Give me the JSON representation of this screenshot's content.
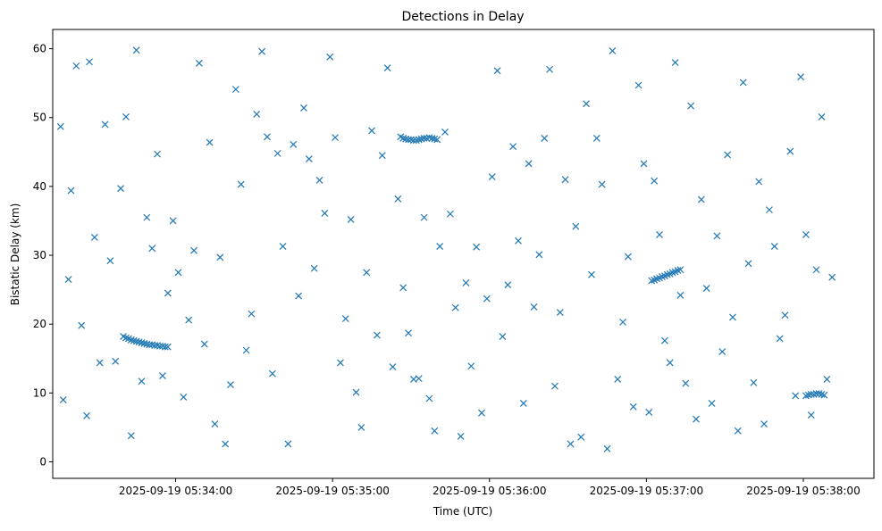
{
  "chart_data": {
    "type": "scatter",
    "title": "Detections in Delay",
    "xlabel": "Time (UTC)",
    "ylabel": "Bistatic Delay (km)",
    "xlim": [
      "2025-09-19 05:33:13",
      "2025-09-19 05:38:27"
    ],
    "ylim": [
      -2.4,
      62.8
    ],
    "x_ticks": [
      "2025-09-19 05:34:00",
      "2025-09-19 05:35:00",
      "2025-09-19 05:36:00",
      "2025-09-19 05:37:00",
      "2025-09-19 05:38:00"
    ],
    "y_ticks": [
      0,
      10,
      20,
      30,
      40,
      50,
      60
    ],
    "marker": "x",
    "color": "#1f77b4",
    "grid": false,
    "series": [
      {
        "x": [
          "05:33:16",
          "05:33:17",
          "05:33:19",
          "05:33:20",
          "05:33:22",
          "05:33:24",
          "05:33:26",
          "05:33:27",
          "05:33:29",
          "05:33:31",
          "05:33:33",
          "05:33:35",
          "05:33:37",
          "05:33:39",
          "05:33:41",
          "05:33:43",
          "05:33:45",
          "05:33:47",
          "05:33:49",
          "05:33:51",
          "05:33:53",
          "05:33:55",
          "05:33:57",
          "05:33:59",
          "05:34:01",
          "05:34:03",
          "05:34:05",
          "05:34:07",
          "05:34:09",
          "05:34:11",
          "05:34:13",
          "05:34:15",
          "05:34:17",
          "05:34:19",
          "05:34:21",
          "05:34:23",
          "05:34:25",
          "05:34:27",
          "05:34:29",
          "05:34:31",
          "05:33:40",
          "05:33:41",
          "05:33:42",
          "05:33:43",
          "05:33:44",
          "05:33:45",
          "05:33:46",
          "05:33:47",
          "05:33:48",
          "05:33:49",
          "05:33:50",
          "05:33:51",
          "05:33:52",
          "05:33:53",
          "05:33:54",
          "05:33:55",
          "05:33:56",
          "05:33:57",
          "05:34:33",
          "05:34:35",
          "05:34:37",
          "05:34:39",
          "05:34:41",
          "05:34:43",
          "05:34:45",
          "05:34:47",
          "05:34:49",
          "05:34:51",
          "05:34:53",
          "05:34:55",
          "05:34:57",
          "05:34:59",
          "05:35:01",
          "05:35:03",
          "05:35:05",
          "05:35:07",
          "05:35:09",
          "05:35:11",
          "05:35:13",
          "05:35:15",
          "05:35:17",
          "05:35:19",
          "05:35:21",
          "05:35:23",
          "05:35:25",
          "05:35:27",
          "05:35:29",
          "05:35:31",
          "05:35:33",
          "05:35:35",
          "05:35:37",
          "05:35:39",
          "05:35:41",
          "05:35:43",
          "05:35:45",
          "05:35:47",
          "05:35:49",
          "05:35:51",
          "05:35:53",
          "05:35:55",
          "05:35:57",
          "05:35:59",
          "05:36:01",
          "05:36:03",
          "05:36:05",
          "05:36:07",
          "05:36:09",
          "05:36:11",
          "05:36:13",
          "05:36:15",
          "05:36:17",
          "05:36:19",
          "05:36:21",
          "05:36:23",
          "05:36:25",
          "05:36:27",
          "05:36:29",
          "05:36:31",
          "05:35:26",
          "05:35:27",
          "05:35:28",
          "05:35:29",
          "05:35:30",
          "05:35:31",
          "05:35:32",
          "05:35:33",
          "05:35:34",
          "05:35:35",
          "05:35:36",
          "05:35:37",
          "05:35:38",
          "05:35:39",
          "05:35:40",
          "05:36:33",
          "05:36:35",
          "05:36:37",
          "05:36:39",
          "05:36:41",
          "05:36:43",
          "05:36:45",
          "05:36:47",
          "05:36:49",
          "05:36:51",
          "05:36:53",
          "05:36:55",
          "05:36:57",
          "05:36:59",
          "05:37:01",
          "05:37:03",
          "05:37:05",
          "05:37:07",
          "05:37:09",
          "05:37:11",
          "05:37:13",
          "05:37:15",
          "05:37:17",
          "05:37:19",
          "05:37:21",
          "05:37:23",
          "05:37:25",
          "05:37:27",
          "05:37:29",
          "05:37:31",
          "05:37:33",
          "05:37:35",
          "05:37:37",
          "05:37:39",
          "05:37:41",
          "05:37:43",
          "05:37:45",
          "05:37:47",
          "05:37:49",
          "05:37:51",
          "05:37:53",
          "05:37:55",
          "05:37:57",
          "05:37:59",
          "05:38:01",
          "05:38:03",
          "05:38:05",
          "05:38:07",
          "05:38:09",
          "05:38:11",
          "05:37:02",
          "05:37:03",
          "05:37:04",
          "05:37:05",
          "05:37:06",
          "05:37:07",
          "05:37:08",
          "05:37:09",
          "05:37:10",
          "05:37:11",
          "05:37:12",
          "05:37:13",
          "05:38:01",
          "05:38:02",
          "05:38:03",
          "05:38:04",
          "05:38:05",
          "05:38:06",
          "05:38:07",
          "05:38:08"
        ],
        "y": [
          48.7,
          9.0,
          26.5,
          39.4,
          57.5,
          19.8,
          6.7,
          58.1,
          32.6,
          14.4,
          49.0,
          29.2,
          14.6,
          39.7,
          50.1,
          3.8,
          59.8,
          11.7,
          35.5,
          31.0,
          44.7,
          12.5,
          24.5,
          35.0,
          27.5,
          9.4,
          20.6,
          30.7,
          57.9,
          17.1,
          46.4,
          5.5,
          29.7,
          2.6,
          11.2,
          54.1,
          40.3,
          16.2,
          21.5,
          50.5,
          18.2,
          18.0,
          17.9,
          17.7,
          17.6,
          17.5,
          17.4,
          17.3,
          17.2,
          17.1,
          17.0,
          17.0,
          16.9,
          16.9,
          16.8,
          16.8,
          16.7,
          16.7,
          59.6,
          47.2,
          12.8,
          44.8,
          31.3,
          2.6,
          46.1,
          24.1,
          51.4,
          44.0,
          28.1,
          40.9,
          36.1,
          58.8,
          47.1,
          14.4,
          20.8,
          35.2,
          10.1,
          5.0,
          27.5,
          48.1,
          18.4,
          44.5,
          57.2,
          13.8,
          38.2,
          25.3,
          18.7,
          12.0,
          12.1,
          35.5,
          9.2,
          4.5,
          31.3,
          47.9,
          36.0,
          22.4,
          3.7,
          26.0,
          13.9,
          31.2,
          7.1,
          23.7,
          41.4,
          56.8,
          18.2,
          25.7,
          45.8,
          32.1,
          8.5,
          43.3,
          22.5,
          30.1,
          47.0,
          57.0,
          11.0,
          21.7,
          41.0,
          2.6,
          47.2,
          47.0,
          46.9,
          46.8,
          46.8,
          46.7,
          46.7,
          46.8,
          46.9,
          47.0,
          47.0,
          47.1,
          47.0,
          46.9,
          46.8,
          34.2,
          3.6,
          52.0,
          27.2,
          47.0,
          40.3,
          1.9,
          59.7,
          12.0,
          20.3,
          29.8,
          8.0,
          54.7,
          43.3,
          7.2,
          40.8,
          33.0,
          17.6,
          14.4,
          58.0,
          24.2,
          11.4,
          51.7,
          6.2,
          38.1,
          25.2,
          8.5,
          32.8,
          16.0,
          44.6,
          21.0,
          4.5,
          55.1,
          28.8,
          11.5,
          40.7,
          5.5,
          36.6,
          31.3,
          17.9,
          21.3,
          45.1,
          9.6,
          55.9,
          33.0,
          6.8,
          27.9,
          50.1,
          12.0,
          26.8,
          26.3,
          26.4,
          26.6,
          26.7,
          26.9,
          27.0,
          27.2,
          27.3,
          27.5,
          27.6,
          27.8,
          27.9,
          9.6,
          9.7,
          9.8,
          9.8,
          9.9,
          9.9,
          9.8,
          9.7
        ]
      }
    ]
  }
}
